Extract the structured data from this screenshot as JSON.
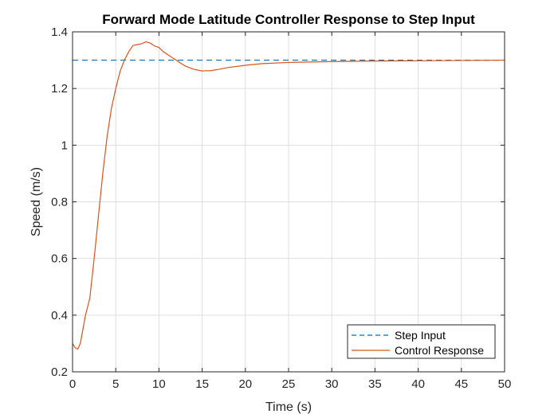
{
  "chart_data": {
    "type": "line",
    "title": "Forward Mode Latitude Controller Response to Step Input",
    "xlabel": "Time (s)",
    "ylabel": "Speed (m/s)",
    "xlim": [
      0,
      50
    ],
    "ylim": [
      0.2,
      1.4
    ],
    "xticks": [
      0,
      5,
      10,
      15,
      20,
      25,
      30,
      35,
      40,
      45,
      50
    ],
    "yticks": [
      0.2,
      0.4,
      0.6,
      0.8,
      1,
      1.2,
      1.4
    ],
    "xtick_labels": [
      "0",
      "5",
      "10",
      "15",
      "20",
      "25",
      "30",
      "35",
      "40",
      "45",
      "50"
    ],
    "ytick_labels": [
      "0.2",
      "0.4",
      "0.6",
      "0.8",
      "1",
      "1.2",
      "1.4"
    ],
    "grid": true,
    "legend_position": "bottom-right",
    "series": [
      {
        "name": "Step Input",
        "color": "#0072BD",
        "style": "dashed",
        "x": [
          0,
          50
        ],
        "y": [
          1.3,
          1.3
        ]
      },
      {
        "name": "Control Response",
        "color": "#D95319",
        "style": "solid",
        "x": [
          0,
          0.3,
          0.6,
          0.9,
          1.2,
          1.5,
          2.0,
          2.5,
          3.0,
          3.5,
          4.0,
          4.5,
          5.0,
          5.5,
          6.0,
          6.5,
          7.0,
          7.5,
          8.0,
          8.5,
          9.0,
          9.5,
          10.0,
          10.5,
          11.0,
          12.0,
          13.0,
          14.0,
          15.0,
          16.0,
          17.0,
          18.0,
          20.0,
          22.0,
          25.0,
          28.0,
          30.0,
          35.0,
          40.0,
          45.0,
          50.0
        ],
        "y": [
          0.3,
          0.285,
          0.28,
          0.3,
          0.35,
          0.4,
          0.46,
          0.6,
          0.75,
          0.9,
          1.03,
          1.13,
          1.2,
          1.26,
          1.3,
          1.33,
          1.352,
          1.355,
          1.358,
          1.365,
          1.36,
          1.35,
          1.345,
          1.33,
          1.32,
          1.3,
          1.28,
          1.268,
          1.262,
          1.263,
          1.268,
          1.274,
          1.282,
          1.288,
          1.292,
          1.294,
          1.295,
          1.297,
          1.298,
          1.299,
          1.3
        ]
      }
    ]
  }
}
